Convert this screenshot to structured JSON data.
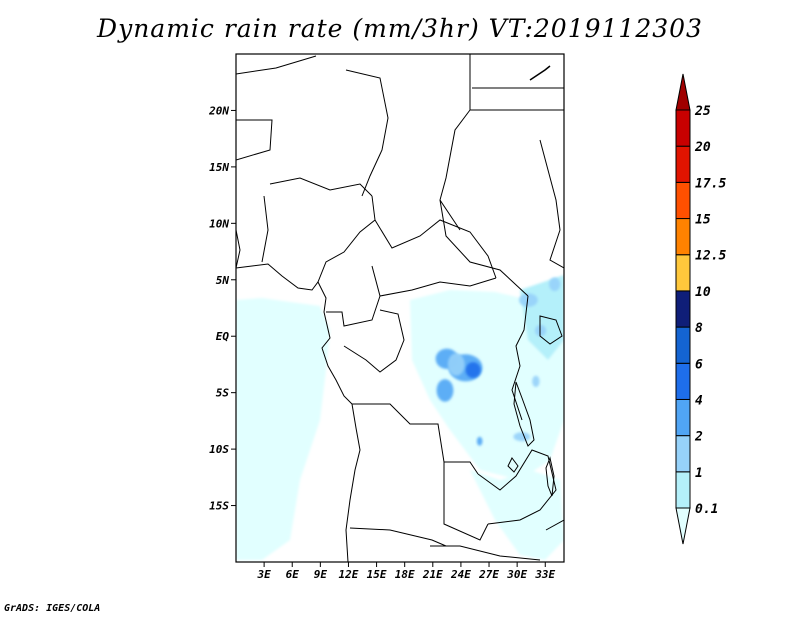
{
  "title": "Dynamic rain rate (mm/3hr) VT:2019112303",
  "footer": "GrADS: IGES/COLA",
  "map": {
    "lon_range": [
      0,
      35
    ],
    "lat_range": [
      -20,
      25
    ],
    "lon_ticks": [
      {
        "value": 3,
        "label": "3E"
      },
      {
        "value": 6,
        "label": "6E"
      },
      {
        "value": 9,
        "label": "9E"
      },
      {
        "value": 12,
        "label": "12E"
      },
      {
        "value": 15,
        "label": "15E"
      },
      {
        "value": 18,
        "label": "18E"
      },
      {
        "value": 21,
        "label": "21E"
      },
      {
        "value": 24,
        "label": "24E"
      },
      {
        "value": 27,
        "label": "27E"
      },
      {
        "value": 30,
        "label": "30E"
      },
      {
        "value": 33,
        "label": "33E"
      }
    ],
    "lat_ticks": [
      {
        "value": 20,
        "label": "20N"
      },
      {
        "value": 15,
        "label": "15N"
      },
      {
        "value": 10,
        "label": "10N"
      },
      {
        "value": 5,
        "label": "5N"
      },
      {
        "value": 0,
        "label": "EQ"
      },
      {
        "value": -5,
        "label": "5S"
      },
      {
        "value": -10,
        "label": "10S"
      },
      {
        "value": -15,
        "label": "15S"
      }
    ]
  },
  "colorbar": {
    "levels": [
      "0.1",
      "1",
      "2",
      "4",
      "6",
      "8",
      "10",
      "12.5",
      "15",
      "17.5",
      "20",
      "25"
    ],
    "colors": [
      "#e1ffff",
      "#b4f0fa",
      "#96d2fa",
      "#50a5f5",
      "#1e6eeb",
      "#1464d2",
      "#0f1e78",
      "#ffc83c",
      "#ff8200",
      "#ff5000",
      "#e11400",
      "#c80000",
      "#a00000"
    ]
  },
  "rain_cells": [
    {
      "lon": 22.5,
      "lat": -2.0,
      "rx": 1.2,
      "ry": 0.9,
      "level": 3
    },
    {
      "lon": 24.5,
      "lat": -2.8,
      "rx": 1.8,
      "ry": 1.2,
      "level": 3
    },
    {
      "lon": 25.3,
      "lat": -3.0,
      "rx": 0.8,
      "ry": 0.7,
      "level": 4
    },
    {
      "lon": 22.3,
      "lat": -4.8,
      "rx": 0.9,
      "ry": 1.0,
      "level": 3
    },
    {
      "lon": 23.5,
      "lat": -2.5,
      "rx": 0.9,
      "ry": 1.0,
      "level": 2
    },
    {
      "lon": 31.2,
      "lat": 3.2,
      "rx": 1.0,
      "ry": 0.6,
      "level": 2
    },
    {
      "lon": 34.0,
      "lat": 4.6,
      "rx": 0.6,
      "ry": 0.6,
      "level": 2
    },
    {
      "lon": 32.5,
      "lat": 0.5,
      "rx": 0.6,
      "ry": 0.5,
      "level": 2
    },
    {
      "lon": 30.5,
      "lat": -8.9,
      "rx": 0.9,
      "ry": 0.4,
      "level": 2
    },
    {
      "lon": 26.0,
      "lat": -9.3,
      "rx": 0.3,
      "ry": 0.4,
      "level": 3
    },
    {
      "lon": 32.0,
      "lat": -4.0,
      "rx": 0.4,
      "ry": 0.5,
      "level": 2
    }
  ]
}
